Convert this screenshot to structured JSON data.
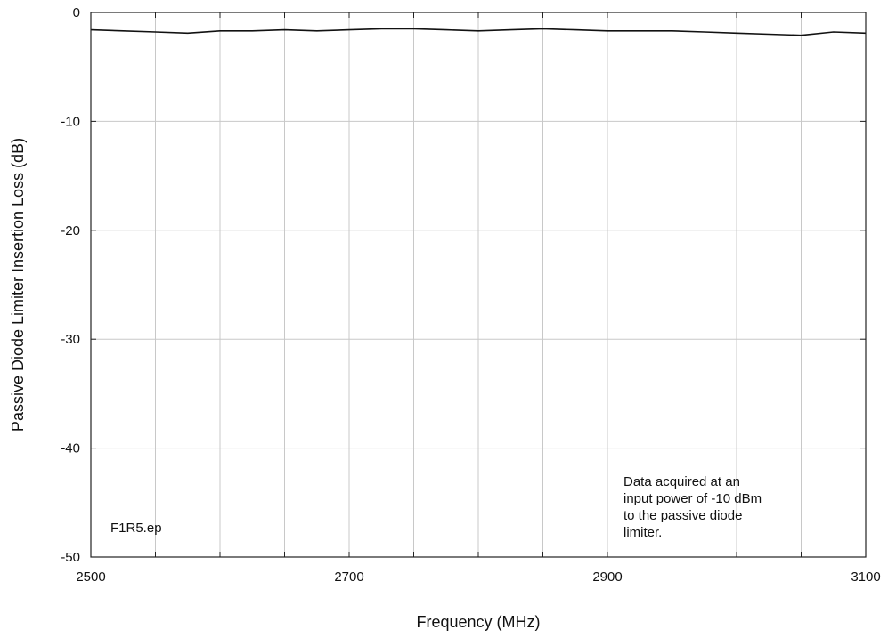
{
  "chart_data": {
    "type": "line",
    "title": "",
    "xlabel": "Frequency (MHz)",
    "ylabel": "Passive Diode Limiter Insertion Loss (dB)",
    "xlim": [
      2500,
      3100
    ],
    "ylim": [
      -50,
      0
    ],
    "x_ticks": [
      2500,
      2700,
      2900,
      3100
    ],
    "x_tick_labels": [
      "2500",
      "2700",
      "2900",
      "3100"
    ],
    "x_minor_step": 50,
    "y_ticks": [
      0,
      -10,
      -20,
      -30,
      -40,
      -50
    ],
    "y_tick_labels": [
      "0",
      "-10",
      "-20",
      "-30",
      "-40",
      "-50"
    ],
    "grid": true,
    "series": [
      {
        "x": [
          2500,
          2525,
          2550,
          2575,
          2600,
          2625,
          2650,
          2675,
          2700,
          2725,
          2750,
          2775,
          2800,
          2825,
          2850,
          2875,
          2900,
          2925,
          2950,
          2975,
          3000,
          3025,
          3050,
          3075,
          3100
        ],
        "values": [
          -1.6,
          -1.7,
          -1.8,
          -1.9,
          -1.7,
          -1.7,
          -1.6,
          -1.7,
          -1.6,
          -1.5,
          -1.5,
          -1.6,
          -1.7,
          -1.6,
          -1.5,
          -1.6,
          -1.7,
          -1.7,
          -1.7,
          -1.8,
          -1.9,
          -2.0,
          -2.1,
          -1.8,
          -1.9
        ]
      }
    ],
    "annotations": [
      {
        "id": "filename",
        "lines": [
          "F1R5.ep"
        ]
      },
      {
        "id": "note",
        "lines": [
          "Data acquired at an",
          "input power of -10 dBm",
          "to the passive diode",
          "limiter."
        ]
      }
    ]
  }
}
